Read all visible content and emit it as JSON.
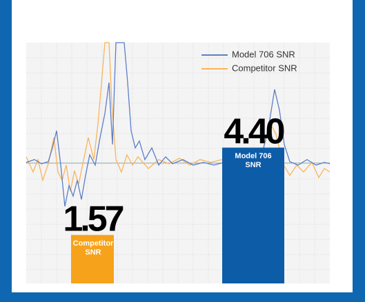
{
  "chart_data": {
    "type": "bar",
    "categories": [
      "Competitor SNR",
      "Model 706 SNR"
    ],
    "values": [
      1.57,
      4.4
    ],
    "value_labels": [
      "1.57",
      "4.40"
    ],
    "colors": [
      "#f7a21b",
      "#0d5ca8"
    ],
    "ylim": [
      0,
      7.8
    ],
    "legend": [
      {
        "name": "Model 706 SNR",
        "color": "#5b7ec6"
      },
      {
        "name": "Competitor SNR",
        "color": "#f9b45a"
      }
    ],
    "grid": true
  }
}
